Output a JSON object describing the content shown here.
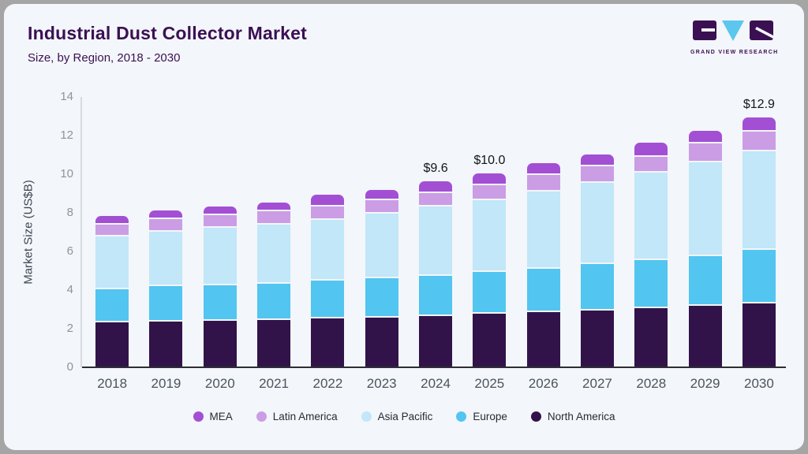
{
  "header": {
    "title": "Industrial Dust Collector Market",
    "subtitle": "Size, by Region, 2018 - 2030",
    "logo_text": "GRAND VIEW RESEARCH"
  },
  "colors": {
    "card_background": "#f3f6fa",
    "frame": "#a5a5a5",
    "title_text": "#3b1053",
    "axis_line": "#2d2d35",
    "y_axis_line": "#d7dbe1",
    "tick_text": "#8d949e",
    "logo_triangle": "#5bc6ee",
    "logo_block": "#3b1053"
  },
  "chart_data": {
    "type": "bar",
    "stacked": true,
    "title": "Industrial Dust Collector Market Size, by Region, 2018 - 2030",
    "xlabel": "",
    "ylabel": "Market Size (US$B)",
    "ylim": [
      0,
      14
    ],
    "yticks": [
      0,
      2,
      4,
      6,
      8,
      10,
      12,
      14
    ],
    "grid": false,
    "legend_position": "bottom",
    "categories": [
      "2018",
      "2019",
      "2020",
      "2021",
      "2022",
      "2023",
      "2024",
      "2025",
      "2026",
      "2027",
      "2028",
      "2029",
      "2030"
    ],
    "series": [
      {
        "name": "North America",
        "color": "#311349",
        "values": [
          2.3,
          2.33,
          2.36,
          2.4,
          2.48,
          2.55,
          2.63,
          2.74,
          2.8,
          2.9,
          3.03,
          3.15,
          3.27
        ]
      },
      {
        "name": "Europe",
        "color": "#52c5f0",
        "values": [
          1.7,
          1.84,
          1.84,
          1.88,
          1.95,
          2.03,
          2.07,
          2.16,
          2.28,
          2.42,
          2.5,
          2.58,
          2.79
        ]
      },
      {
        "name": "Asia Pacific",
        "color": "#c1e7f8",
        "values": [
          2.75,
          2.83,
          2.99,
          3.06,
          3.15,
          3.32,
          3.6,
          3.7,
          3.97,
          4.18,
          4.5,
          4.83,
          5.07
        ]
      },
      {
        "name": "Latin America",
        "color": "#cb9de5",
        "values": [
          0.6,
          0.62,
          0.63,
          0.7,
          0.7,
          0.7,
          0.7,
          0.8,
          0.85,
          0.86,
          0.82,
          0.98,
          1.03
        ]
      },
      {
        "name": "MEA",
        "color": "#a34fd4",
        "values": [
          0.45,
          0.48,
          0.48,
          0.46,
          0.6,
          0.53,
          0.6,
          0.6,
          0.62,
          0.64,
          0.73,
          0.66,
          0.74
        ]
      }
    ],
    "totals": [
      7.8,
      8.1,
      8.3,
      8.5,
      8.88,
      9.13,
      9.6,
      10.0,
      10.52,
      11.0,
      11.58,
      12.2,
      12.9
    ],
    "bar_labels": {
      "2024": "$9.6",
      "2025": "$10.0",
      "2030": "$12.9"
    },
    "legend": [
      "MEA",
      "Latin America",
      "Asia Pacific",
      "Europe",
      "North America"
    ]
  }
}
